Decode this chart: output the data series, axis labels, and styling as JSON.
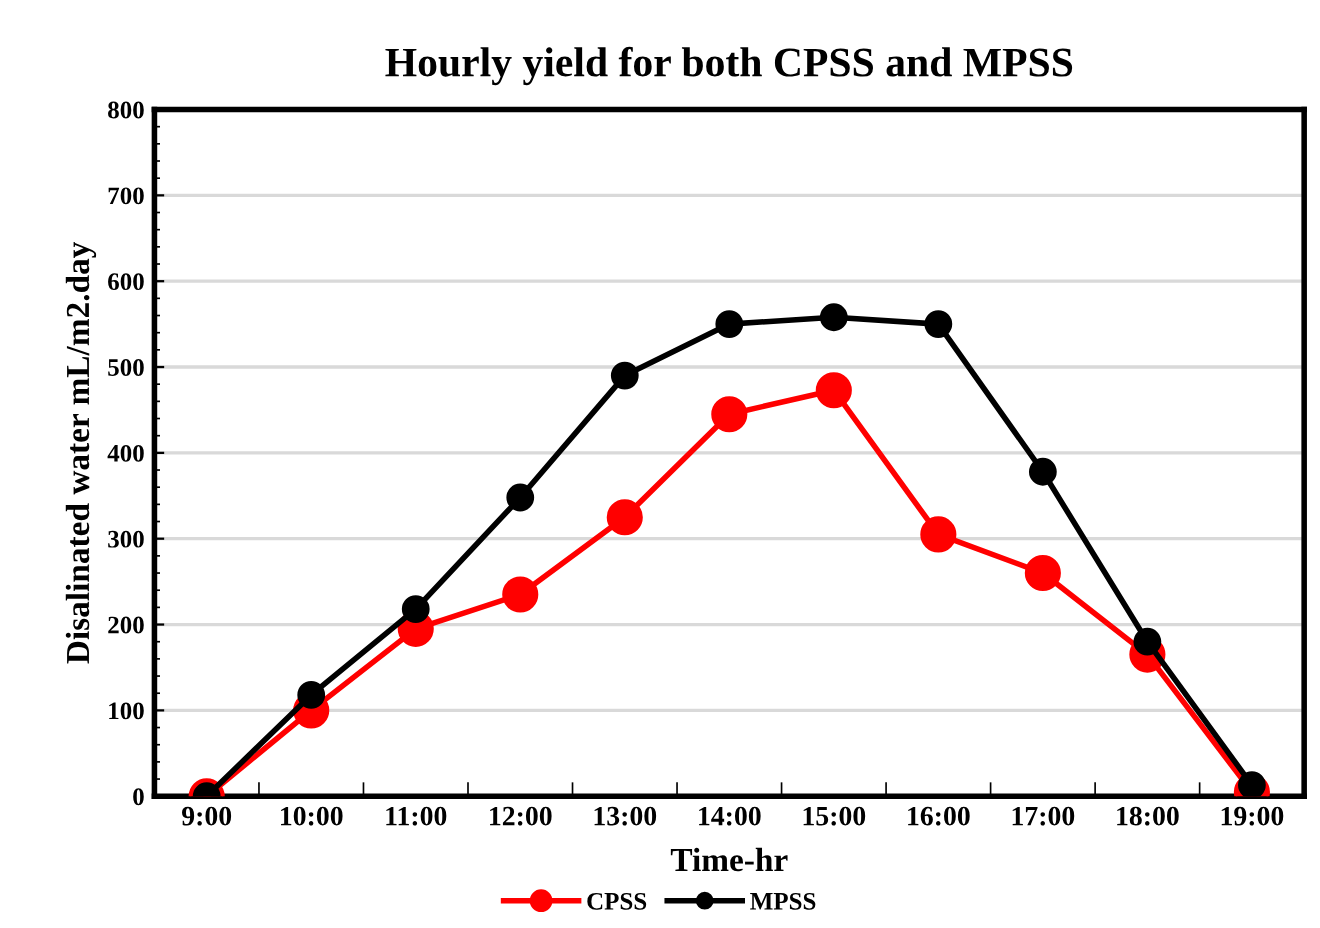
{
  "chart_data": {
    "type": "line",
    "title": "Hourly yield for both CPSS and MPSS",
    "xlabel": "Time-hr",
    "ylabel": "Disalinated water mL/m2.day",
    "categories": [
      "9:00",
      "10:00",
      "11:00",
      "12:00",
      "13:00",
      "14:00",
      "15:00",
      "16:00",
      "17:00",
      "18:00",
      "19:00"
    ],
    "series": [
      {
        "name": "CPSS",
        "color": "#ff0000",
        "values": [
          0,
          100,
          195,
          235,
          325,
          445,
          473,
          305,
          260,
          165,
          5
        ]
      },
      {
        "name": "MPSS",
        "color": "#000000",
        "values": [
          0,
          118,
          218,
          348,
          490,
          550,
          558,
          550,
          378,
          180,
          13
        ]
      }
    ],
    "ylim": [
      0,
      800
    ],
    "yticks": [
      0,
      100,
      200,
      300,
      400,
      500,
      600,
      700,
      800
    ],
    "grid": "y",
    "legend": "bottom",
    "marker": "circle",
    "line_style": "solid"
  }
}
